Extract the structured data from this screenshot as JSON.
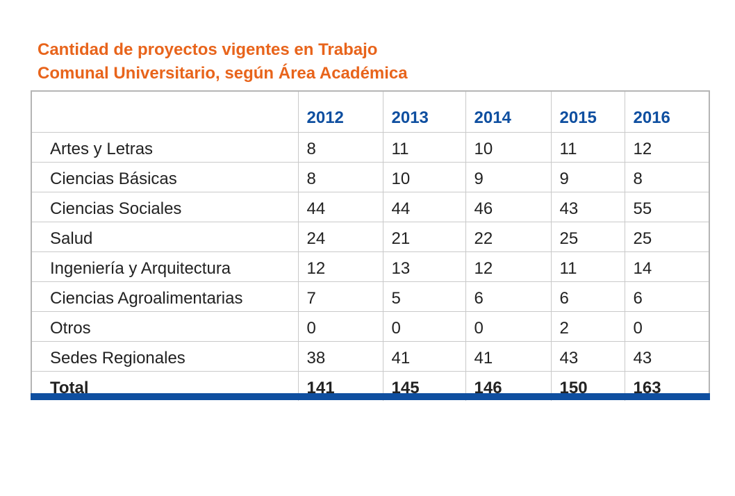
{
  "title": {
    "line1": "Cantidad de proyectos vigentes en Trabajo",
    "line2": "Comunal Universitario, según Área Académica"
  },
  "table": {
    "years": [
      "2012",
      "2013",
      "2014",
      "2015",
      "2016"
    ],
    "rows": [
      {
        "label": "Artes y Letras",
        "values": [
          "8",
          "11",
          "10",
          "11",
          "12"
        ]
      },
      {
        "label": "Ciencias Básicas",
        "values": [
          "8",
          "10",
          "9",
          "9",
          "8"
        ]
      },
      {
        "label": "Ciencias Sociales",
        "values": [
          "44",
          "44",
          "46",
          "43",
          "55"
        ]
      },
      {
        "label": "Salud",
        "values": [
          "24",
          "21",
          "22",
          "25",
          "25"
        ]
      },
      {
        "label": "Ingeniería y Arquitectura",
        "values": [
          "12",
          "13",
          "12",
          "11",
          "14"
        ]
      },
      {
        "label": "Ciencias Agroalimentarias",
        "values": [
          "7",
          "5",
          "6",
          "6",
          "6"
        ]
      },
      {
        "label": "Otros",
        "values": [
          "0",
          "0",
          "0",
          "2",
          "0"
        ]
      },
      {
        "label": "Sedes Regionales",
        "values": [
          "38",
          "41",
          "41",
          "43",
          "43"
        ]
      }
    ],
    "total": {
      "label": "Total",
      "values": [
        "141",
        "145",
        "146",
        "150",
        "163"
      ]
    }
  },
  "colors": {
    "title": "#e8641b",
    "header": "#0f4fa0",
    "bottom_bar": "#0f4fa0"
  }
}
